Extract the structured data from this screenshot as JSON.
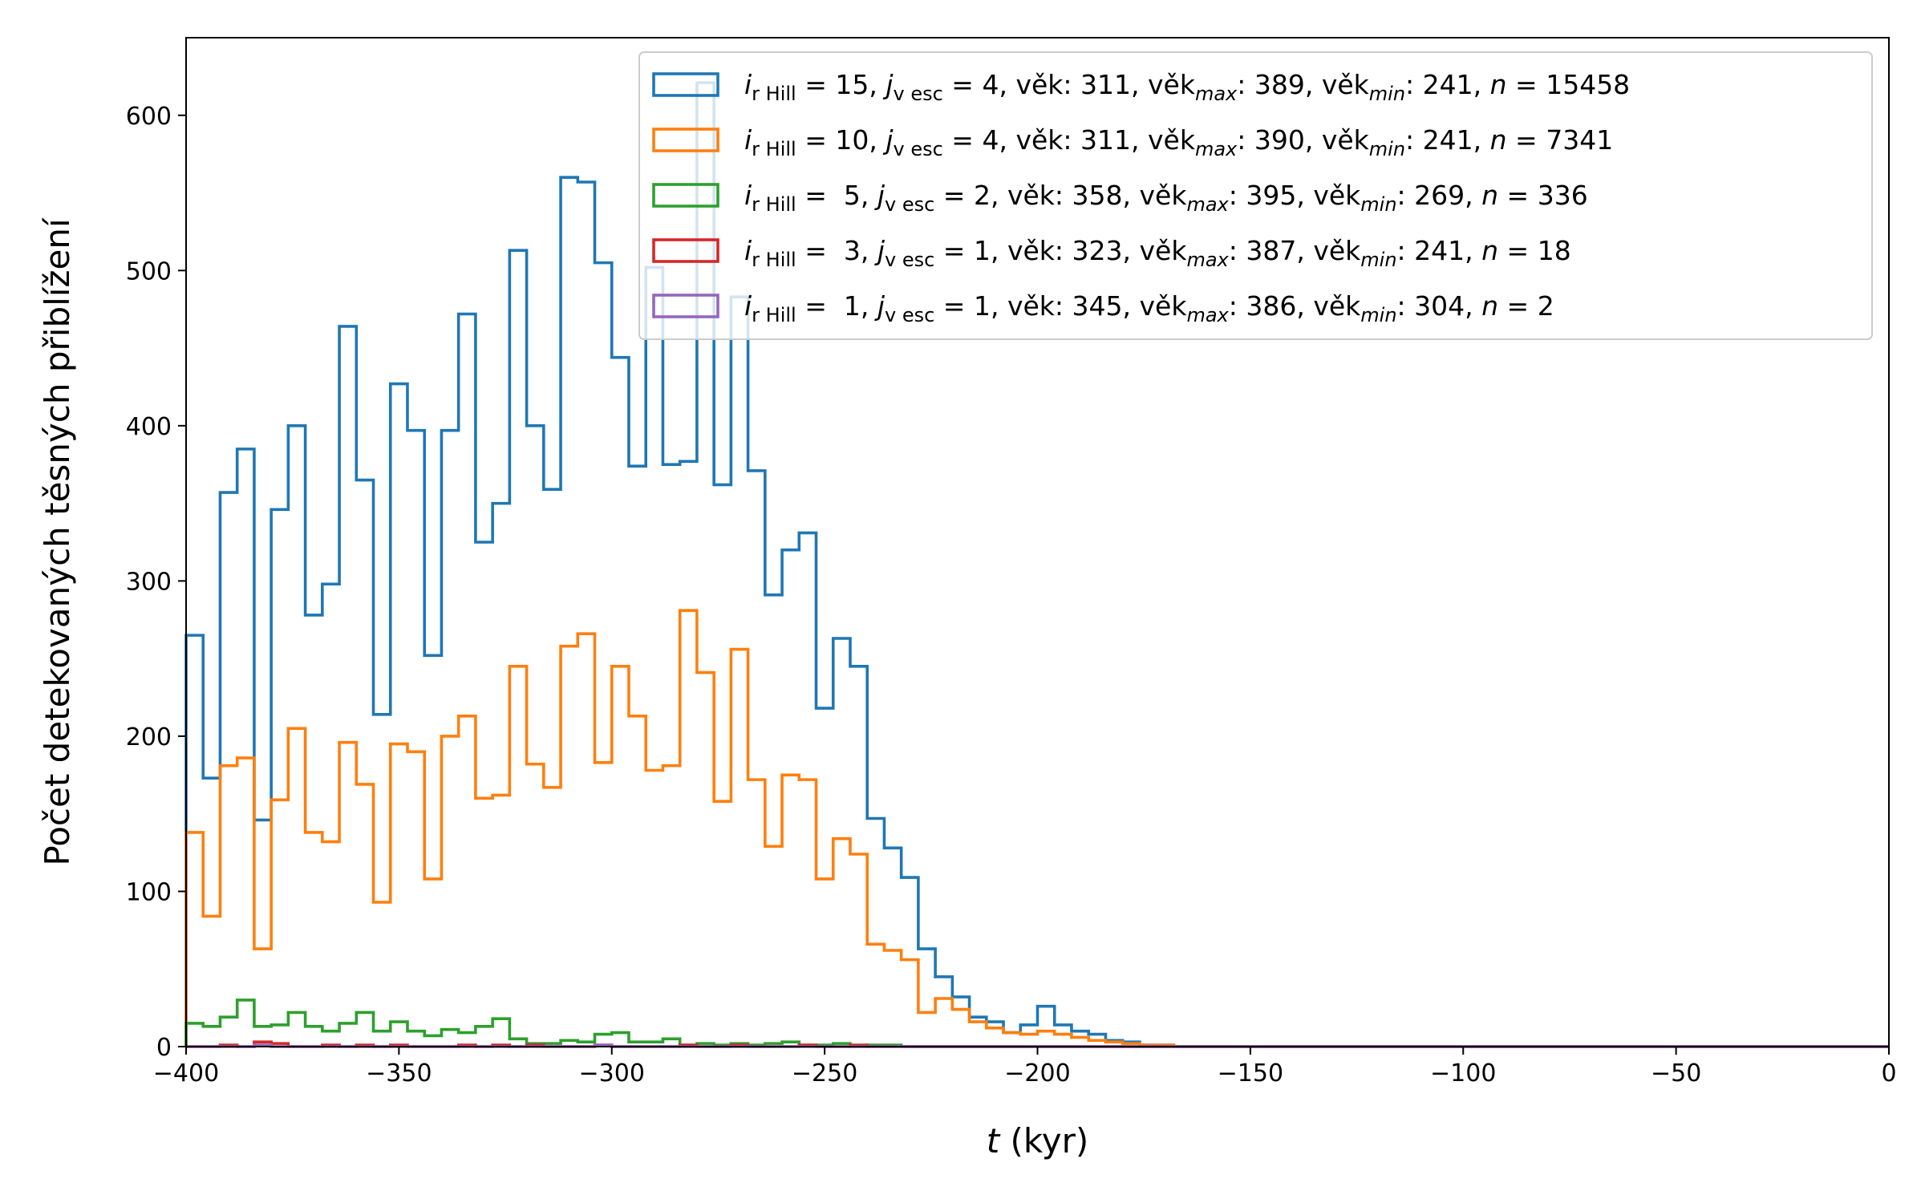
{
  "chart_data": {
    "type": "histogram-step",
    "xlabel_var": "t",
    "xlabel_unit": " (kyr)",
    "ylabel": "Počet detekovaných těsných přiblížení",
    "xlim": [
      -400,
      0
    ],
    "ylim": [
      0,
      650
    ],
    "xticks": [
      -400,
      -350,
      -300,
      -250,
      -200,
      -150,
      -100,
      -50,
      0
    ],
    "yticks": [
      0,
      100,
      200,
      300,
      400,
      500,
      600
    ],
    "xtick_labels": [
      "−400",
      "−350",
      "−300",
      "−250",
      "−200",
      "−150",
      "−100",
      "−50",
      "0"
    ],
    "ytick_labels": [
      "0",
      "100",
      "200",
      "300",
      "400",
      "500",
      "600"
    ],
    "bin_start": -400,
    "bin_width": 4,
    "legend_placement": "top-right",
    "series": [
      {
        "color": "#1f77b4",
        "legend": {
          "i": "15",
          "j": "4",
          "age": "311",
          "age_max": "389",
          "age_min": "241",
          "n": "15458"
        },
        "values": [
          265,
          173,
          357,
          385,
          146,
          346,
          400,
          278,
          298,
          464,
          365,
          214,
          427,
          397,
          252,
          397,
          472,
          325,
          350,
          513,
          400,
          359,
          560,
          557,
          505,
          444,
          374,
          502,
          375,
          377,
          621,
          362,
          483,
          371,
          291,
          320,
          331,
          218,
          263,
          245,
          147,
          128,
          109,
          63,
          45,
          32,
          19,
          16,
          9,
          14,
          26,
          14,
          10,
          8,
          4,
          3,
          1,
          1,
          0,
          0,
          0,
          0,
          0,
          0,
          0,
          0,
          0,
          0,
          0,
          0,
          0,
          0,
          0,
          0,
          0,
          0,
          0,
          0,
          0,
          0,
          0,
          0,
          0,
          0,
          0,
          0,
          0,
          0,
          0,
          0,
          0,
          0,
          0,
          0,
          0,
          0,
          0,
          0,
          0,
          0
        ]
      },
      {
        "color": "#ff7f0e",
        "legend": {
          "i": "10",
          "j": "4",
          "age": "311",
          "age_max": "390",
          "age_min": "241",
          "n": "7341"
        },
        "values": [
          138,
          84,
          181,
          186,
          63,
          159,
          205,
          138,
          132,
          196,
          169,
          93,
          195,
          190,
          108,
          200,
          213,
          160,
          162,
          245,
          182,
          167,
          258,
          266,
          183,
          245,
          213,
          178,
          181,
          281,
          241,
          158,
          256,
          172,
          129,
          175,
          172,
          108,
          134,
          124,
          66,
          62,
          56,
          22,
          31,
          24,
          16,
          12,
          9,
          8,
          10,
          8,
          6,
          4,
          3,
          2,
          1,
          1,
          0,
          0,
          0,
          0,
          0,
          0,
          0,
          0,
          0,
          0,
          0,
          0,
          0,
          0,
          0,
          0,
          0,
          0,
          0,
          0,
          0,
          0,
          0,
          0,
          0,
          0,
          0,
          0,
          0,
          0,
          0,
          0,
          0,
          0,
          0,
          0,
          0,
          0,
          0,
          0,
          0,
          0
        ]
      },
      {
        "color": "#2ca02c",
        "legend": {
          "i": " 5",
          "j": "2",
          "age": "358",
          "age_max": "395",
          "age_min": "269",
          "n": "336"
        },
        "values": [
          15,
          13,
          19,
          30,
          13,
          14,
          22,
          13,
          10,
          15,
          22,
          10,
          16,
          10,
          7,
          11,
          9,
          13,
          18,
          5,
          2,
          2,
          4,
          3,
          8,
          9,
          3,
          3,
          5,
          1,
          2,
          1,
          2,
          1,
          2,
          3,
          1,
          1,
          2,
          0,
          1,
          1,
          0,
          0,
          0,
          0,
          0,
          0,
          0,
          0,
          0,
          0,
          0,
          0,
          0,
          0,
          0,
          0,
          0,
          0,
          0,
          0,
          0,
          0,
          0,
          0,
          0,
          0,
          0,
          0,
          0,
          0,
          0,
          0,
          0,
          0,
          0,
          0,
          0,
          0,
          0,
          0,
          0,
          0,
          0,
          0,
          0,
          0,
          0,
          0,
          0,
          0,
          0,
          0,
          0,
          0,
          0,
          0,
          0,
          0
        ]
      },
      {
        "color": "#d62728",
        "legend": {
          "i": " 3",
          "j": "1",
          "age": "323",
          "age_max": "387",
          "age_min": "241",
          "n": "18"
        },
        "values": [
          0,
          0,
          1,
          0,
          3,
          2,
          0,
          0,
          1,
          0,
          1,
          0,
          1,
          0,
          0,
          0,
          1,
          0,
          1,
          0,
          1,
          0,
          0,
          0,
          1,
          0,
          0,
          0,
          0,
          1,
          0,
          0,
          1,
          0,
          0,
          0,
          1,
          0,
          0,
          1,
          0,
          0,
          0,
          0,
          0,
          0,
          0,
          0,
          0,
          0,
          0,
          0,
          0,
          0,
          0,
          0,
          0,
          0,
          0,
          0,
          0,
          0,
          0,
          0,
          0,
          0,
          0,
          0,
          0,
          0,
          0,
          0,
          0,
          0,
          0,
          0,
          0,
          0,
          0,
          0,
          0,
          0,
          0,
          0,
          0,
          0,
          0,
          0,
          0,
          0,
          0,
          0,
          0,
          0,
          0,
          0,
          0,
          0,
          0,
          0
        ]
      },
      {
        "color": "#9467bd",
        "legend": {
          "i": " 1",
          "j": "1",
          "age": "345",
          "age_max": "386",
          "age_min": "304",
          "n": "2"
        },
        "values": [
          0,
          0,
          0,
          0,
          1,
          0,
          0,
          0,
          0,
          0,
          0,
          0,
          0,
          0,
          0,
          0,
          0,
          0,
          0,
          0,
          0,
          0,
          0,
          0,
          1,
          0,
          0,
          0,
          0,
          0,
          0,
          0,
          0,
          0,
          0,
          0,
          0,
          0,
          0,
          0,
          0,
          0,
          0,
          0,
          0,
          0,
          0,
          0,
          0,
          0,
          0,
          0,
          0,
          0,
          0,
          0,
          0,
          0,
          0,
          0,
          0,
          0,
          0,
          0,
          0,
          0,
          0,
          0,
          0,
          0,
          0,
          0,
          0,
          0,
          0,
          0,
          0,
          0,
          0,
          0,
          0,
          0,
          0,
          0,
          0,
          0,
          0,
          0,
          0,
          0,
          0,
          0,
          0,
          0,
          0,
          0,
          0,
          0,
          0,
          0
        ]
      }
    ],
    "legend_text": {
      "i_var": "i",
      "i_sub": "r Hill",
      "eq": " = ",
      "j_var": "j",
      "j_sub": "v esc",
      "age_label": "věk: ",
      "age_max_base": "věk",
      "age_max_sub": "max",
      "age_min_base": "věk",
      "age_min_sub": "min",
      "n_var": "n",
      "sep": ", ",
      "colon": ": "
    }
  }
}
